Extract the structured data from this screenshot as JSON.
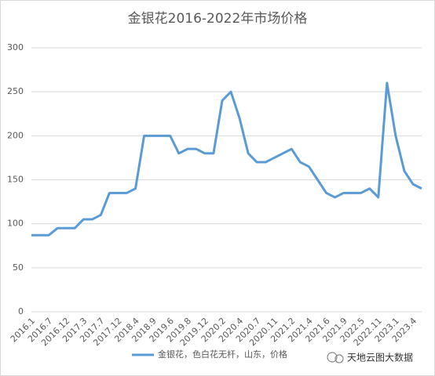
{
  "chart_data": {
    "type": "line",
    "title": "金银花2016-2022年市场价格",
    "categories": [
      "2016.1",
      null,
      "2016.7",
      null,
      "2016.12",
      null,
      "2017.3",
      null,
      "2017.7",
      null,
      "2017.12",
      null,
      "2018.4",
      null,
      "2018.9",
      null,
      "2019.6",
      null,
      "2019.8",
      null,
      "2019.12",
      null,
      "2020.2",
      null,
      "2020.4",
      null,
      "2020.7",
      null,
      "2020.11",
      null,
      "2021.2",
      null,
      "2021.4",
      null,
      "2021.6",
      null,
      "2021.9",
      null,
      "2022.5",
      null,
      "2022.11",
      null,
      "2023.1",
      null,
      "2023.4",
      null
    ],
    "series": [
      {
        "name": "金银花，色白花无杆，山东，价格",
        "color": "#5b9bd5",
        "values": [
          87,
          87,
          87,
          95,
          95,
          95,
          105,
          105,
          110,
          135,
          135,
          135,
          140,
          200,
          200,
          200,
          200,
          180,
          185,
          185,
          180,
          180,
          240,
          250,
          220,
          180,
          170,
          170,
          175,
          180,
          185,
          170,
          165,
          150,
          135,
          130,
          135,
          135,
          135,
          140,
          130,
          260,
          200,
          160,
          145,
          140
        ]
      }
    ],
    "ylim": [
      0,
      300
    ],
    "yticks": [
      0,
      50,
      100,
      150,
      200,
      250,
      300
    ],
    "grid": true,
    "legend": "bottom",
    "watermark": "天地云图大数据"
  }
}
